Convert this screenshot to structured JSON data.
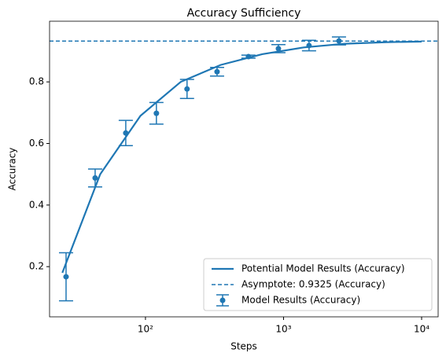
{
  "chart_data": {
    "type": "line",
    "title": "Accuracy Sufficiency",
    "xlabel": "Steps",
    "ylabel": "Accuracy",
    "xscale": "log",
    "xlim": [
      20.2,
      13170
    ],
    "ylim": [
      0.037,
      0.997
    ],
    "xticks": [
      {
        "value": 100,
        "label": "10²"
      },
      {
        "value": 1000,
        "label": "10³"
      },
      {
        "value": 10000,
        "label": "10⁴"
      }
    ],
    "yticks": [
      0.2,
      0.4,
      0.6,
      0.8
    ],
    "grid": false,
    "legend": "lower right",
    "series": [
      {
        "name": "Potential Model Results (Accuracy)",
        "kind": "line",
        "color": "#1f77b4",
        "x": [
          25,
          47,
          92,
          180,
          350,
          700,
          1400,
          2800,
          5600,
          10000
        ],
        "values": [
          0.18,
          0.5,
          0.69,
          0.8,
          0.855,
          0.89,
          0.912,
          0.924,
          0.929,
          0.931
        ]
      },
      {
        "name": "Asymptote: 0.9325 (Accuracy)",
        "kind": "hline",
        "color": "#1f77b4",
        "value": 0.9325
      },
      {
        "name": "Model Results (Accuracy)",
        "kind": "errorbar",
        "color": "#1f77b4",
        "x": [
          26.6,
          43.2,
          72,
          120,
          200,
          330,
          557,
          918,
          1530,
          2520
        ],
        "values": [
          0.167,
          0.488,
          0.634,
          0.698,
          0.777,
          0.833,
          0.882,
          0.908,
          0.918,
          0.933
        ],
        "errors": [
          0.078,
          0.029,
          0.041,
          0.035,
          0.031,
          0.014,
          0.005,
          0.013,
          0.017,
          0.013
        ]
      }
    ]
  }
}
